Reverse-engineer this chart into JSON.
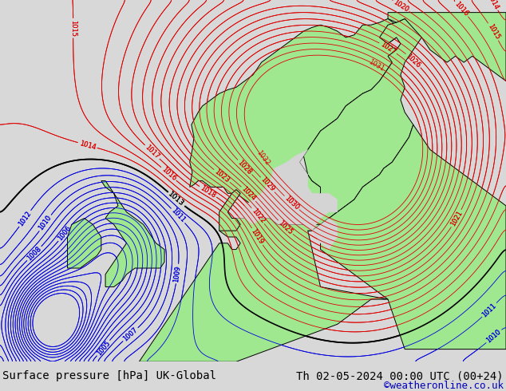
{
  "title_left": "Surface pressure [hPa] UK-Global",
  "title_right": "Th 02-05-2024 00:00 UTC (00+24)",
  "credit": "©weatheronline.co.uk",
  "bg_color": "#d8d8d8",
  "land_color": "#a8e8a0",
  "sea_color": "#e8e8e8",
  "title_fontsize": 10,
  "credit_fontsize": 9,
  "fig_width": 6.34,
  "fig_height": 4.9,
  "lon_min": -18,
  "lon_max": 42,
  "lat_min": 44,
  "lat_max": 73
}
